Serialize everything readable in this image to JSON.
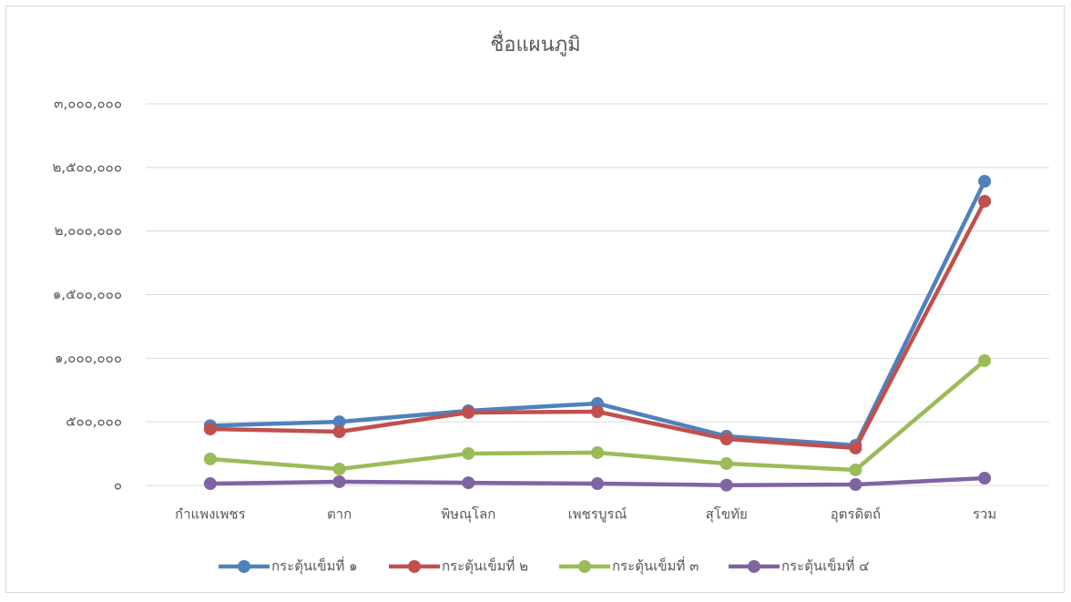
{
  "chart_data": {
    "type": "line",
    "title": "ชื่อแผนภูมิ",
    "categories": [
      "กำแพงเพชร",
      "ตาก",
      "พิษณุโลก",
      "เพชรบูรณ์",
      "สุโขทัย",
      "อุตรดิตถ์",
      "รวม"
    ],
    "series": [
      {
        "name": "กระตุ้นเข็มที่ ๑",
        "color": "#4f81bd",
        "values": [
          470000,
          500000,
          587000,
          644000,
          387000,
          315000,
          2391000
        ]
      },
      {
        "name": "กระตุ้นเข็มที่ ๒",
        "color": "#c0504d",
        "values": [
          444000,
          422000,
          573000,
          580000,
          365000,
          294000,
          2234000
        ]
      },
      {
        "name": "กระตุ้นเข็มที่ ๓",
        "color": "#9bbb59",
        "values": [
          208000,
          129000,
          251000,
          258000,
          172000,
          122000,
          981000
        ]
      },
      {
        "name": "กระตุ้นเข็มที่ ๔",
        "color": "#8064a2",
        "values": [
          14000,
          29000,
          21000,
          14000,
          2000,
          7000,
          57000
        ]
      }
    ],
    "ylim": [
      0,
      3000000
    ],
    "yticks": [
      {
        "value": 0,
        "label": "๐"
      },
      {
        "value": 500000,
        "label": "๕๐๐,๐๐๐"
      },
      {
        "value": 1000000,
        "label": "๑,๐๐๐,๐๐๐"
      },
      {
        "value": 1500000,
        "label": "๑,๕๐๐,๐๐๐"
      },
      {
        "value": 2000000,
        "label": "๒,๐๐๐,๐๐๐"
      },
      {
        "value": 2500000,
        "label": "๒,๕๐๐,๐๐๐"
      },
      {
        "value": 3000000,
        "label": "๓,๐๐๐,๐๐๐"
      }
    ],
    "grid": true,
    "legend": "bottom"
  }
}
